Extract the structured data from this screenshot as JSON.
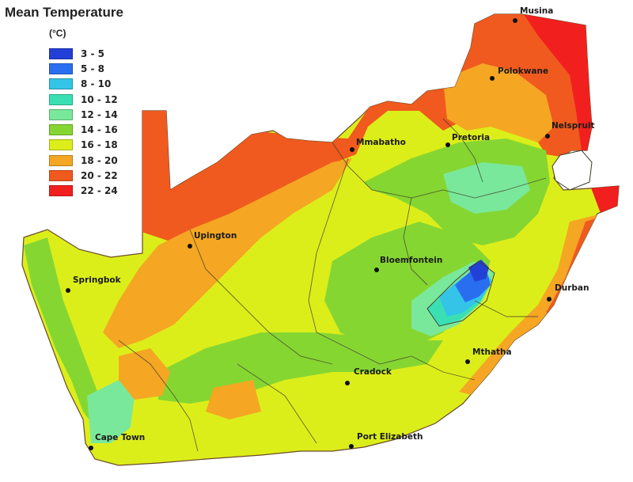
{
  "map": {
    "title": "Mean Temperature",
    "unit": "(°C)",
    "legend": [
      {
        "label": "3 - 5",
        "color": "#2340d6"
      },
      {
        "label": "5 - 8",
        "color": "#2a6ef0"
      },
      {
        "label": "8 - 10",
        "color": "#33c4e8"
      },
      {
        "label": "10 - 12",
        "color": "#3ae0b4"
      },
      {
        "label": "12 - 14",
        "color": "#7ae89a"
      },
      {
        "label": "14 - 16",
        "color": "#86d632"
      },
      {
        "label": "16 - 18",
        "color": "#dcee1a"
      },
      {
        "label": "18 - 20",
        "color": "#f5a623"
      },
      {
        "label": "20 - 22",
        "color": "#f05a1e"
      },
      {
        "label": "22 - 24",
        "color": "#f21f1f"
      }
    ],
    "cities": [
      {
        "name": "Musina"
      },
      {
        "name": "Polokwane"
      },
      {
        "name": "Nelspruit"
      },
      {
        "name": "Pretoria"
      },
      {
        "name": "Mmabatho"
      },
      {
        "name": "Upington"
      },
      {
        "name": "Springbok"
      },
      {
        "name": "Bloemfontein"
      },
      {
        "name": "Durban"
      },
      {
        "name": "Mthatha"
      },
      {
        "name": "Cradock"
      },
      {
        "name": "Cape Town"
      },
      {
        "name": "Port Elizabeth"
      }
    ]
  }
}
